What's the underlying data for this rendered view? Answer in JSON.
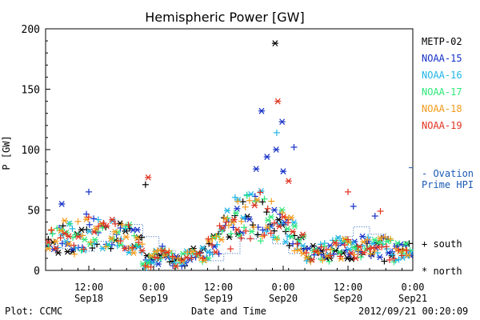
{
  "chart_data": {
    "type": "scatter",
    "title": "Hemispheric Power [GW]",
    "ylabel": "P [GW]",
    "xlabel": "Date and Time",
    "ylim": [
      0,
      200
    ],
    "yticks": [
      0,
      50,
      100,
      150,
      200
    ],
    "xlim_hours": [
      -20,
      48
    ],
    "xticks": [
      {
        "time": "12:00",
        "date": "Sep18"
      },
      {
        "time": "0:00",
        "date": "Sep19"
      },
      {
        "time": "12:00",
        "date": "Sep19"
      },
      {
        "time": "0:00",
        "date": "Sep20"
      },
      {
        "time": "12:00",
        "date": "Sep20"
      },
      {
        "time": "0:00",
        "date": "Sep21"
      }
    ],
    "series": [
      {
        "name": "METP-02",
        "color": "#000000"
      },
      {
        "name": "NOAA-15",
        "color": "#1530c8"
      },
      {
        "name": "NOAA-16",
        "color": "#1eb4e6"
      },
      {
        "name": "NOAA-17",
        "color": "#2ee87a"
      },
      {
        "name": "NOAA-18",
        "color": "#f29a1a"
      },
      {
        "name": "NOAA-19",
        "color": "#e0321e"
      }
    ],
    "ovation": {
      "label1": "- Ovation",
      "label2": "Prime HPI",
      "color": "#1a5ab4",
      "level": 85
    },
    "markers": {
      "south": "+ south",
      "north": "* north"
    }
  },
  "footer": {
    "left": "Plot: CCMC",
    "right": "2012/09/21 00:20:09"
  }
}
